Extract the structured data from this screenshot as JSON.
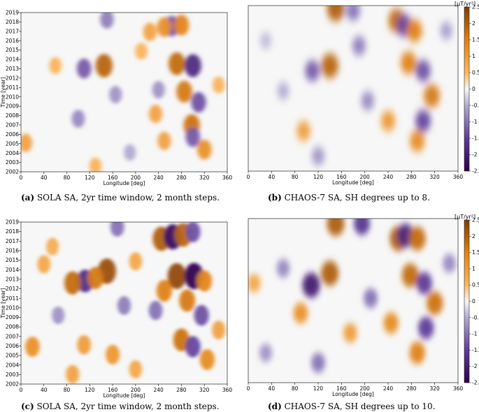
{
  "chart_data": [
    {
      "id": "a",
      "type": "heatmap",
      "caption_label": "(a)",
      "caption_text": "SOLA SA, 2yr time window, 2 month steps.",
      "xlabel": "Longitude [deg]",
      "ylabel": "Time [year]",
      "xlim": [
        0,
        360
      ],
      "ylim": [
        2002,
        2018.5
      ],
      "xticks": [
        0,
        40,
        80,
        120,
        160,
        200,
        240,
        280,
        320,
        360
      ],
      "yticks": [
        2002,
        2003,
        2004,
        2005,
        2006,
        2007,
        2008,
        2009,
        2010,
        2011,
        2012,
        2013,
        2014,
        2015,
        2016,
        2017,
        2018,
        2019
      ],
      "clim": [
        -2.5,
        2.5
      ],
      "blobs": [
        {
          "lon": 145,
          "year": 2013.0,
          "value": 1.9
        },
        {
          "lon": 110,
          "year": 2012.7,
          "value": -1.2
        },
        {
          "lon": 272,
          "year": 2013.2,
          "value": 1.8
        },
        {
          "lon": 300,
          "year": 2013.0,
          "value": -1.8
        },
        {
          "lon": 285,
          "year": 2010.3,
          "value": 1.6
        },
        {
          "lon": 298,
          "year": 2006.8,
          "value": 1.7
        },
        {
          "lon": 310,
          "year": 2009.2,
          "value": -1.3
        },
        {
          "lon": 300,
          "year": 2005.6,
          "value": -1.2
        },
        {
          "lon": 320,
          "year": 2004.3,
          "value": 1.2
        },
        {
          "lon": 263,
          "year": 2017.1,
          "value": -1.3
        },
        {
          "lon": 250,
          "year": 2017.0,
          "value": 1.2
        },
        {
          "lon": 280,
          "year": 2017.2,
          "value": 1.4
        },
        {
          "lon": 225,
          "year": 2016.5,
          "value": 0.9
        },
        {
          "lon": 150,
          "year": 2017.8,
          "value": -0.9
        },
        {
          "lon": 165,
          "year": 2010.0,
          "value": -0.7
        },
        {
          "lon": 240,
          "year": 2010.5,
          "value": -0.7
        },
        {
          "lon": 235,
          "year": 2008.0,
          "value": 0.9
        },
        {
          "lon": 250,
          "year": 2005.2,
          "value": 0.9
        },
        {
          "lon": 100,
          "year": 2007.5,
          "value": -0.8
        },
        {
          "lon": 60,
          "year": 2013.0,
          "value": 0.6
        },
        {
          "lon": 8,
          "year": 2005.0,
          "value": 0.9
        },
        {
          "lon": 190,
          "year": 2004.0,
          "value": -0.5
        },
        {
          "lon": 130,
          "year": 2002.6,
          "value": 0.6
        },
        {
          "lon": 210,
          "year": 2014.5,
          "value": 0.6
        },
        {
          "lon": 345,
          "year": 2011.0,
          "value": 0.6
        }
      ]
    },
    {
      "id": "b",
      "type": "heatmap",
      "caption_label": "(b)",
      "caption_text": "CHAOS-7 SA, SH degrees up to 8.",
      "xlabel": "Longitude [deg]",
      "xlim": [
        0,
        360
      ],
      "ylim": [
        2002,
        2018.5
      ],
      "xticks": [
        0,
        40,
        80,
        120,
        160,
        200,
        240,
        280,
        320,
        360
      ],
      "clim": [
        -2.5,
        2.5
      ],
      "blobs": [
        {
          "lon": 150,
          "year": 2018.2,
          "value": 2.0
        },
        {
          "lon": 180,
          "year": 2018.0,
          "value": -1.0
        },
        {
          "lon": 255,
          "year": 2017.0,
          "value": 1.8
        },
        {
          "lon": 268,
          "year": 2016.5,
          "value": -1.4
        },
        {
          "lon": 285,
          "year": 2016.0,
          "value": 1.5
        },
        {
          "lon": 140,
          "year": 2012.5,
          "value": 1.9
        },
        {
          "lon": 110,
          "year": 2012.0,
          "value": -1.2
        },
        {
          "lon": 275,
          "year": 2012.8,
          "value": 1.5
        },
        {
          "lon": 300,
          "year": 2012.0,
          "value": -1.3
        },
        {
          "lon": 315,
          "year": 2009.5,
          "value": 1.6
        },
        {
          "lon": 300,
          "year": 2007.0,
          "value": -1.4
        },
        {
          "lon": 290,
          "year": 2005.0,
          "value": 1.3
        },
        {
          "lon": 240,
          "year": 2007.0,
          "value": 1.1
        },
        {
          "lon": 95,
          "year": 2006.0,
          "value": 1.0
        },
        {
          "lon": 120,
          "year": 2003.5,
          "value": -0.7
        },
        {
          "lon": 205,
          "year": 2009.0,
          "value": -0.8
        },
        {
          "lon": 190,
          "year": 2014.5,
          "value": -0.9
        },
        {
          "lon": 60,
          "year": 2010.0,
          "value": -0.5
        },
        {
          "lon": 340,
          "year": 2016.0,
          "value": -0.6
        },
        {
          "lon": 30,
          "year": 2015.0,
          "value": -0.4
        }
      ],
      "colorbar": {
        "unit_label": "[μT/yr²]",
        "ticks": [
          -2.5,
          -2,
          -1.5,
          -1,
          -0.5,
          0,
          0.5,
          1,
          1.5,
          2,
          2.5
        ],
        "tick_labels": [
          "-2.5",
          "-2",
          "-1.5",
          "-1",
          "-0.5",
          "0",
          "0.5",
          "1",
          "1.5",
          "2",
          "2.5"
        ]
      }
    },
    {
      "id": "c",
      "type": "heatmap",
      "caption_label": "(c)",
      "caption_text": "SOLA SA, 2yr time window, 2 month steps.",
      "xlabel": "Longitude [deg]",
      "ylabel": "Time [year]",
      "xlim": [
        0,
        360
      ],
      "ylim": [
        2002,
        2018.5
      ],
      "xticks": [
        0,
        40,
        80,
        120,
        160,
        200,
        240,
        280,
        320,
        360
      ],
      "yticks": [
        2002,
        2003,
        2004,
        2005,
        2006,
        2007,
        2008,
        2009,
        2010,
        2011,
        2012,
        2013,
        2014,
        2015,
        2016,
        2017,
        2018,
        2019
      ],
      "clim": [
        -2.5,
        2.5
      ],
      "blobs": [
        {
          "lon": 245,
          "year": 2016.8,
          "value": 2.0
        },
        {
          "lon": 265,
          "year": 2017.0,
          "value": -2.2
        },
        {
          "lon": 283,
          "year": 2017.2,
          "value": 1.9
        },
        {
          "lon": 300,
          "year": 2017.5,
          "value": -1.3
        },
        {
          "lon": 150,
          "year": 2013.5,
          "value": 2.2
        },
        {
          "lon": 112,
          "year": 2012.5,
          "value": -1.7
        },
        {
          "lon": 90,
          "year": 2012.3,
          "value": 1.8
        },
        {
          "lon": 130,
          "year": 2012.8,
          "value": 1.6
        },
        {
          "lon": 272,
          "year": 2013.0,
          "value": 2.3
        },
        {
          "lon": 302,
          "year": 2013.0,
          "value": -2.4
        },
        {
          "lon": 320,
          "year": 2012.5,
          "value": 1.4
        },
        {
          "lon": 250,
          "year": 2011.5,
          "value": 1.5
        },
        {
          "lon": 290,
          "year": 2010.5,
          "value": 1.6
        },
        {
          "lon": 315,
          "year": 2009.0,
          "value": -1.3
        },
        {
          "lon": 280,
          "year": 2006.5,
          "value": 1.7
        },
        {
          "lon": 300,
          "year": 2005.8,
          "value": -1.4
        },
        {
          "lon": 325,
          "year": 2004.5,
          "value": 1.3
        },
        {
          "lon": 20,
          "year": 2005.8,
          "value": 1.2
        },
        {
          "lon": 110,
          "year": 2006.0,
          "value": 1.0
        },
        {
          "lon": 160,
          "year": 2005.0,
          "value": 1.1
        },
        {
          "lon": 180,
          "year": 2010.0,
          "value": -0.9
        },
        {
          "lon": 235,
          "year": 2009.5,
          "value": -1.0
        },
        {
          "lon": 65,
          "year": 2009.0,
          "value": -0.7
        },
        {
          "lon": 40,
          "year": 2014.2,
          "value": 0.8
        },
        {
          "lon": 200,
          "year": 2014.5,
          "value": 0.8
        },
        {
          "lon": 168,
          "year": 2018.0,
          "value": -1.0
        },
        {
          "lon": 90,
          "year": 2003.0,
          "value": 0.9
        },
        {
          "lon": 200,
          "year": 2003.5,
          "value": 0.8
        },
        {
          "lon": 345,
          "year": 2007.5,
          "value": 0.9
        },
        {
          "lon": 55,
          "year": 2016.0,
          "value": 0.7
        }
      ]
    },
    {
      "id": "d",
      "type": "heatmap",
      "caption_label": "(d)",
      "caption_text": "CHAOS-7 SA, SH degrees up to 10.",
      "xlabel": "Longitude [deg]",
      "xlim": [
        0,
        360
      ],
      "ylim": [
        2002,
        2018.5
      ],
      "xticks": [
        0,
        40,
        80,
        120,
        160,
        200,
        240,
        280,
        320,
        360
      ],
      "clim": [
        -2.5,
        2.5
      ],
      "blobs": [
        {
          "lon": 150,
          "year": 2018.0,
          "value": 2.0
        },
        {
          "lon": 195,
          "year": 2018.0,
          "value": -1.6
        },
        {
          "lon": 258,
          "year": 2016.5,
          "value": 2.0
        },
        {
          "lon": 270,
          "year": 2016.8,
          "value": -1.8
        },
        {
          "lon": 290,
          "year": 2016.5,
          "value": 1.8
        },
        {
          "lon": 140,
          "year": 2013.0,
          "value": 2.0
        },
        {
          "lon": 108,
          "year": 2011.8,
          "value": -2.0
        },
        {
          "lon": 278,
          "year": 2012.8,
          "value": 1.8
        },
        {
          "lon": 302,
          "year": 2012.0,
          "value": -1.5
        },
        {
          "lon": 320,
          "year": 2010.0,
          "value": 1.7
        },
        {
          "lon": 305,
          "year": 2007.5,
          "value": -1.5
        },
        {
          "lon": 290,
          "year": 2005.0,
          "value": 1.5
        },
        {
          "lon": 245,
          "year": 2008.0,
          "value": 1.3
        },
        {
          "lon": 90,
          "year": 2009.0,
          "value": 1.2
        },
        {
          "lon": 60,
          "year": 2013.5,
          "value": -0.8
        },
        {
          "lon": 120,
          "year": 2004.0,
          "value": -1.0
        },
        {
          "lon": 210,
          "year": 2010.5,
          "value": -1.0
        },
        {
          "lon": 175,
          "year": 2007.0,
          "value": 1.0
        },
        {
          "lon": 30,
          "year": 2005.0,
          "value": -0.7
        },
        {
          "lon": 345,
          "year": 2014.0,
          "value": -0.8
        },
        {
          "lon": 10,
          "year": 2012.0,
          "value": 0.8
        }
      ],
      "colorbar": {
        "unit_label": "[μT/yr²]",
        "ticks": [
          -2.5,
          -2,
          -1.5,
          -1,
          -0.5,
          0,
          0.5,
          1,
          1.5,
          2,
          2.5
        ],
        "tick_labels": [
          "-2.5",
          "-2",
          "-1.5",
          "-1",
          "-0.5",
          "0",
          "0.5",
          "1",
          "1.5",
          "2",
          "2.5"
        ]
      }
    }
  ]
}
